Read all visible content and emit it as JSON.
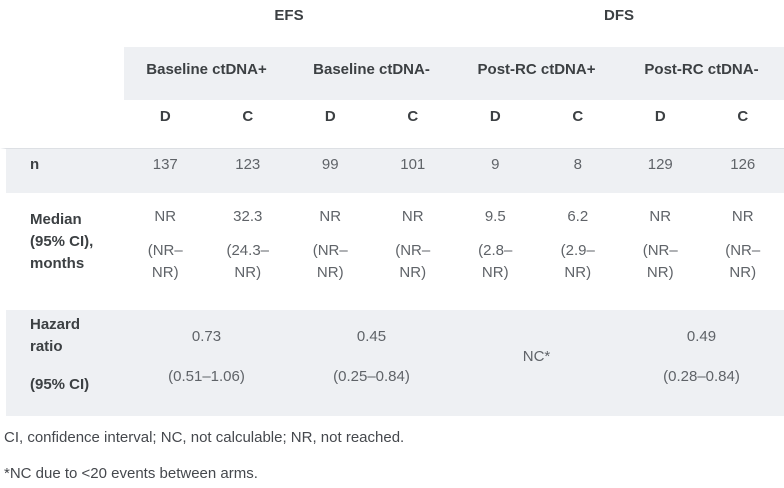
{
  "colors": {
    "band_background": "#eef0f3",
    "header_text": "#3c4043",
    "value_text": "#5f6368",
    "divider": "#dde0e4"
  },
  "table": {
    "group_headers": {
      "efs": "EFS",
      "dfs": "DFS"
    },
    "subgroups": [
      "Baseline ctDNA+",
      "Baseline ctDNA-",
      "Post-RC ctDNA+",
      "Post-RC ctDNA-"
    ],
    "arms": [
      "D",
      "C",
      "D",
      "C",
      "D",
      "C",
      "D",
      "C"
    ],
    "n_row": {
      "label": "n",
      "values": [
        "137",
        "123",
        "99",
        "101",
        "9",
        "8",
        "129",
        "126"
      ]
    },
    "median_row": {
      "label_lines": [
        "Median",
        "(95% CI),",
        "months"
      ],
      "cells": [
        {
          "v": "NR",
          "c1": "(NR–",
          "c2": "NR)"
        },
        {
          "v": "32.3",
          "c1": "(24.3–",
          "c2": "NR)"
        },
        {
          "v": "NR",
          "c1": "(NR–",
          "c2": "NR)"
        },
        {
          "v": "NR",
          "c1": "(NR–",
          "c2": "NR)"
        },
        {
          "v": "9.5",
          "c1": "(2.8–",
          "c2": "NR)"
        },
        {
          "v": "6.2",
          "c1": "(2.9–",
          "c2": "NR)"
        },
        {
          "v": "NR",
          "c1": "(NR–",
          "c2": "NR)"
        },
        {
          "v": "NR",
          "c1": "(NR–",
          "c2": "NR)"
        }
      ]
    },
    "hazard_row": {
      "label_line1": "Hazard",
      "label_line2": "ratio",
      "label_sub": "(95% CI)",
      "cells": [
        {
          "v": "0.73",
          "ci": "(0.51–1.06)"
        },
        {
          "v": "0.45",
          "ci": "(0.25–0.84)"
        },
        {
          "v": "NC*"
        },
        {
          "v": "0.49",
          "ci": "(0.28–0.84)"
        }
      ]
    }
  },
  "footnotes": [
    "CI, confidence interval; NC, not calculable; NR, not reached.",
    "*NC due to <20 events between arms."
  ]
}
